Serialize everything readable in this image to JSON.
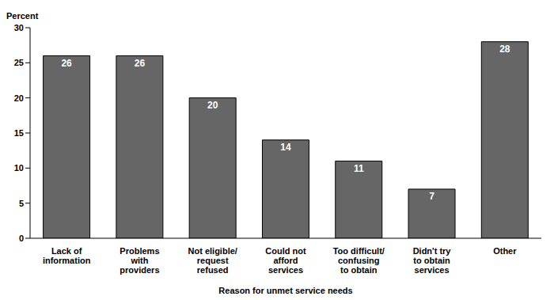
{
  "chart_data": {
    "type": "bar",
    "y_label": "Percent",
    "x_label": "Reason for unmet service needs",
    "categories": [
      "Lack of\ninformation",
      "Problems\nwith\nproviders",
      "Not eligible/\nrequest\nrefused",
      "Could not\nafford\nservices",
      "Too difficult/\nconfusing\nto obtain",
      "Didn't try\nto obtain\nservices",
      "Other"
    ],
    "values": [
      26,
      26,
      20,
      14,
      11,
      7,
      28
    ],
    "color": "#666666",
    "ylim": [
      0,
      30
    ],
    "yticks": [
      0,
      5,
      10,
      15,
      20,
      25,
      30
    ],
    "grid": false,
    "data_labels": true
  }
}
